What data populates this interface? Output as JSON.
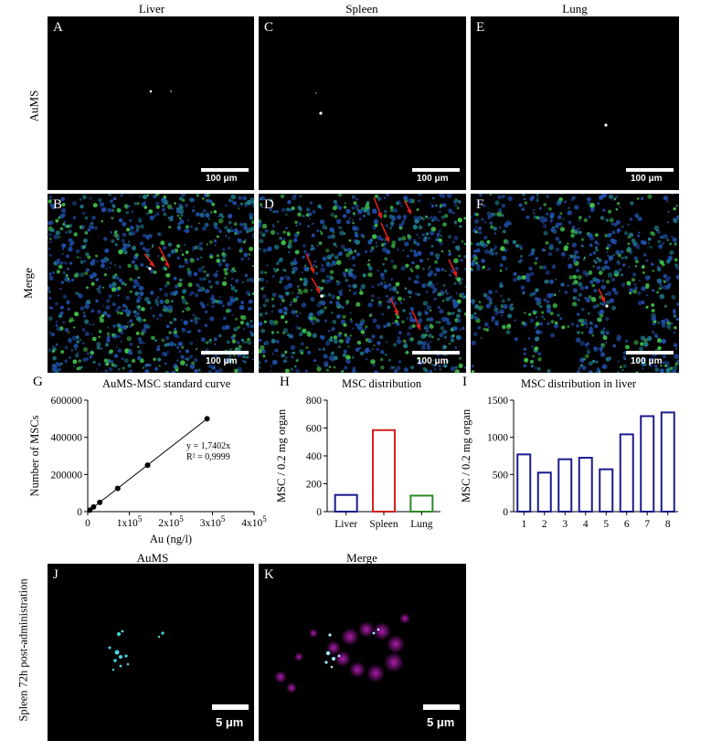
{
  "columns": [
    "Liver",
    "Spleen",
    "Lung"
  ],
  "rows": [
    "AuMS",
    "Merge"
  ],
  "panels": {
    "A": "A",
    "B": "B",
    "C": "C",
    "D": "D",
    "E": "E",
    "F": "F",
    "G": "G",
    "H": "H",
    "I": "I",
    "J": "J",
    "K": "K"
  },
  "scale_100": "100 μm",
  "scale_5": "5 μm",
  "bottom": {
    "title_j": "AuMS",
    "title_k": "Merge",
    "row_label": "Spleen 72h post-administration"
  },
  "colors": {
    "nuclei": "#1f4ea8",
    "membrane": "#3fbf4a",
    "arrow": "#e0201a",
    "aums_cyan": "#40d8e0",
    "merge_magenta": "#c020c0",
    "bar_liver": "#1a1a8c",
    "bar_spleen": "#d42020",
    "bar_lung": "#2a8a2a"
  },
  "chart_data": [
    {
      "id": "G",
      "type": "scatter",
      "title": "AuMS-MSC standard curve",
      "xlabel": "Au (ng/l)",
      "ylabel": "Number of MSCs",
      "x": [
        5000,
        14000,
        29000,
        72000,
        144000,
        287000
      ],
      "y": [
        8000,
        25000,
        50000,
        125000,
        250000,
        500000
      ],
      "xlim": [
        0,
        400000
      ],
      "ylim": [
        0,
        600000
      ],
      "xticks": [
        "0",
        "1x10",
        "2x10",
        "3x10",
        "4x10"
      ],
      "xtick_exp": "5",
      "yticks": [
        "0",
        "200000",
        "400000",
        "600000"
      ],
      "annotation": [
        "y = 1,7402x",
        "R² = 0,9999"
      ]
    },
    {
      "id": "H",
      "type": "bar",
      "title": "MSC distribution",
      "ylabel": "MSC / 0.2 mg organ",
      "categories": [
        "Liver",
        "Spleen",
        "Lung"
      ],
      "values": [
        120,
        585,
        115
      ],
      "ylim": [
        0,
        800
      ],
      "yticks": [
        "0",
        "200",
        "400",
        "600",
        "800"
      ]
    },
    {
      "id": "I",
      "type": "bar",
      "title": "MSC distribution in liver",
      "ylabel": "MSC / 0.2 mg organ",
      "categories": [
        "1",
        "2",
        "3",
        "4",
        "5",
        "6",
        "7",
        "8"
      ],
      "values": [
        770,
        525,
        705,
        725,
        570,
        1040,
        1285,
        1335
      ],
      "ylim": [
        0,
        1500
      ],
      "yticks": [
        "0",
        "500",
        "1000",
        "1500"
      ]
    }
  ]
}
